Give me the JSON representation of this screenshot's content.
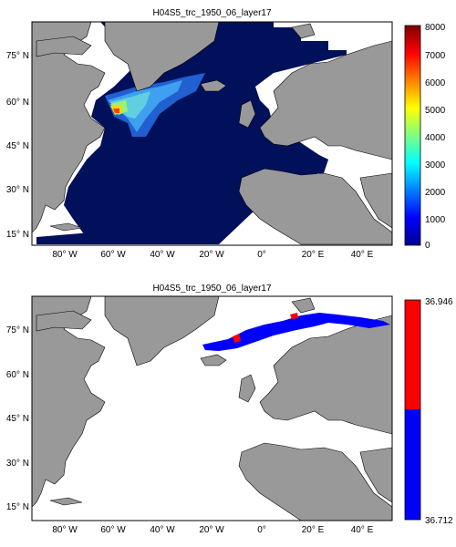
{
  "figure": {
    "panels": [
      {
        "title": "H04S5_trc_1950_06_layer17",
        "lat_ticks": [
          "75° N",
          "60° N",
          "45° N",
          "30° N",
          "15° N"
        ],
        "lon_ticks": [
          "80° W",
          "60° W",
          "40° W",
          "20° W",
          "0°",
          "20° E",
          "40° E"
        ],
        "colorbar": {
          "type": "continuous",
          "ticks": [
            "0",
            "1000",
            "2000",
            "3000",
            "4000",
            "5000",
            "6000",
            "7000",
            "8000"
          ],
          "min": 0,
          "max": 8000,
          "colormap": "jet"
        }
      },
      {
        "title": "H04S5_trc_1950_06_layer17",
        "lat_ticks": [
          "75° N",
          "60° N",
          "45° N",
          "30° N",
          "15° N"
        ],
        "lon_ticks": [
          "80° W",
          "60° W",
          "40° W",
          "20° W",
          "0°",
          "20° E",
          "40° E"
        ],
        "colorbar": {
          "type": "two-color",
          "ticks": [
            "36.946",
            "36.712"
          ],
          "colors": [
            "#ff0000",
            "#0000ff"
          ]
        }
      }
    ],
    "colors": {
      "land": "#999999",
      "ocean_deep": "#00105a",
      "blank": "#ffffff"
    }
  }
}
